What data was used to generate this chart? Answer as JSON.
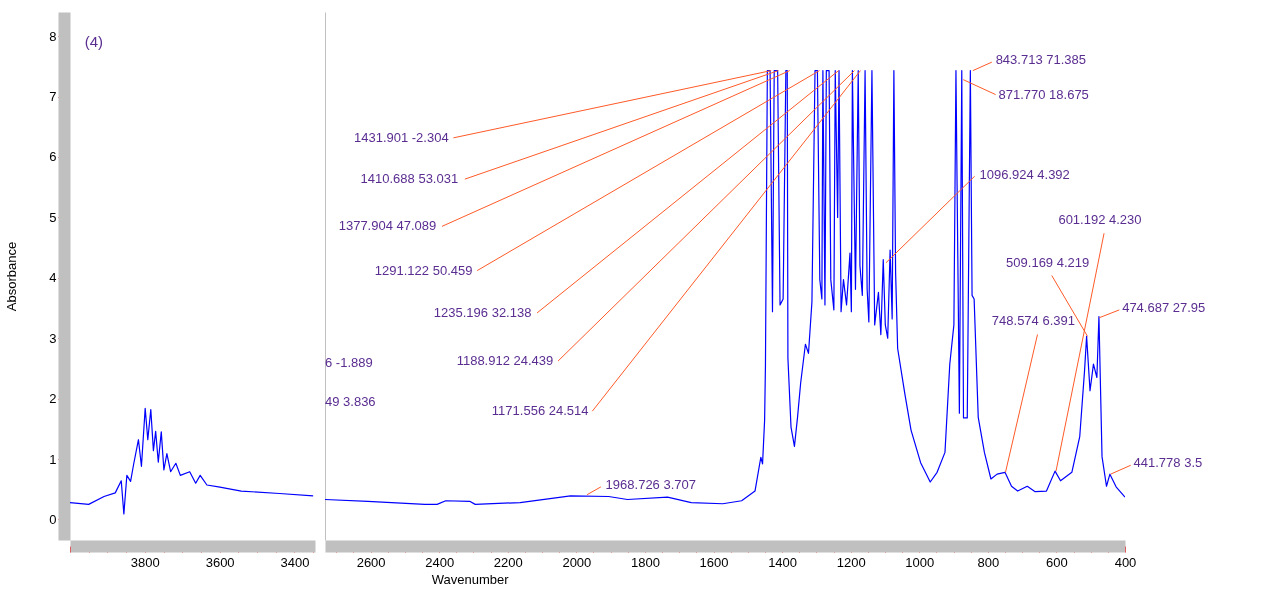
{
  "chart_data": [
    {
      "type": "line",
      "ylabel": "Absorbance",
      "x": [
        4000,
        3950,
        3909,
        3879,
        3863,
        3856,
        3848,
        3838,
        3830,
        3817,
        3809,
        3799,
        3792,
        3784,
        3777,
        3771,
        3764,
        3756,
        3749,
        3741,
        3731,
        3717,
        3705,
        3680,
        3664,
        3652,
        3634,
        3603,
        3542,
        3440,
        3350
      ],
      "series": [
        {
          "color": "#0000ff",
          "values": [
            0.28,
            0.25,
            0.38,
            0.44,
            0.64,
            0.09,
            0.73,
            0.63,
            0.91,
            1.32,
            0.88,
            1.84,
            1.32,
            1.82,
            1.14,
            1.46,
            0.95,
            1.45,
            0.82,
            1.09,
            0.79,
            0.93,
            0.73,
            0.79,
            0.6,
            0.73,
            0.57,
            0.54,
            0.47,
            0.43,
            0.39
          ]
        }
      ],
      "xlim": [
        4000,
        3345
      ],
      "ylim": [
        -0.34,
        8.4
      ],
      "xticks": [
        {
          "value": 4000,
          "label": null
        },
        {
          "value": 3950,
          "label": null
        },
        {
          "value": 3900,
          "label": null
        },
        {
          "value": 3850,
          "label": null
        },
        3800,
        {
          "value": 3750,
          "label": null
        },
        {
          "value": 3700,
          "label": null
        },
        {
          "value": 3650,
          "label": null
        },
        3600,
        {
          "value": 3550,
          "label": null
        },
        {
          "value": 3500,
          "label": null
        },
        {
          "value": 3450,
          "label": null
        },
        3400,
        {
          "value": 3350,
          "label": null
        }
      ],
      "yticks": [
        0,
        1,
        2,
        3,
        4,
        5,
        6,
        7,
        8
      ],
      "annotations": [
        "(4)"
      ]
    },
    {
      "type": "line",
      "xlabel": "Wavenumber",
      "x": [
        2733,
        2608,
        2442,
        2406,
        2381,
        2311,
        2295,
        2164,
        2017,
        1906,
        1851,
        1734,
        1665,
        1573,
        1518,
        1479,
        1462,
        1457,
        1451,
        1448.5,
        1443,
        1435,
        1428,
        1423,
        1413,
        1406,
        1397,
        1389,
        1385,
        1383,
        1374,
        1364,
        1355,
        1346,
        1332,
        1323,
        1313,
        1304,
        1297,
        1290,
        1284,
        1281,
        1275,
        1271,
        1263,
        1258,
        1249,
        1245,
        1238,
        1234,
        1228,
        1221,
        1212,
        1202,
        1198,
        1195,
        1186,
        1178,
        1173,
        1166,
        1158,
        1152,
        1147,
        1138,
        1130,
        1119,
        1112,
        1105,
        1099,
        1092,
        1085,
        1079,
        1074,
        1069,
        1063,
        1042,
        1024,
        996,
        968,
        948,
        925,
        911,
        899,
        893,
        883,
        876,
        871,
        860,
        851,
        846,
        840,
        828,
        810,
        791,
        773,
        750,
        731,
        713,
        685,
        662,
        629,
        604,
        588,
        555,
        532,
        518,
        512,
        502,
        492,
        482,
        476,
        467,
        454,
        444,
        426,
        400
      ],
      "series": [
        {
          "color": "#0000ff",
          "values": [
            0.33,
            0.3,
            0.25,
            0.25,
            0.31,
            0.3,
            0.25,
            0.28,
            0.39,
            0.38,
            0.33,
            0.37,
            0.28,
            0.26,
            0.31,
            0.47,
            1.03,
            0.92,
            1.64,
            2.57,
            7.43,
            7.43,
            3.44,
            7.43,
            7.43,
            3.55,
            3.65,
            7.43,
            7.43,
            2.67,
            1.53,
            1.21,
            1.69,
            2.25,
            2.9,
            2.75,
            3.6,
            7.43,
            7.43,
            3.97,
            3.65,
            7.43,
            3.55,
            7.43,
            7.43,
            3.97,
            3.47,
            7.43,
            5.0,
            7.43,
            3.44,
            3.97,
            3.55,
            4.41,
            3.44,
            7.43,
            3.81,
            7.43,
            4.2,
            3.71,
            7.43,
            3.81,
            3.27,
            7.43,
            3.22,
            3.76,
            3.06,
            4.3,
            3.22,
            3.0,
            4.46,
            3.32,
            7.43,
            4.09,
            2.83,
            2.08,
            1.48,
            0.94,
            0.62,
            0.78,
            1.11,
            2.57,
            3.22,
            7.43,
            1.76,
            7.43,
            1.68,
            1.68,
            7.43,
            3.71,
            3.65,
            1.69,
            1.11,
            0.67,
            0.75,
            0.78,
            0.55,
            0.47,
            0.55,
            0.46,
            0.47,
            0.8,
            0.64,
            0.78,
            1.37,
            2.46,
            3.03,
            2.13,
            2.57,
            2.35,
            3.36,
            1.04,
            0.55,
            0.75,
            0.54,
            0.37
          ]
        }
      ],
      "xlim": [
        2733,
        400
      ],
      "ylim": [
        -0.34,
        8.4
      ],
      "xticks": [
        {
          "value": 2700,
          "label": null
        },
        {
          "value": 2650,
          "label": null
        },
        2600,
        {
          "value": 2550,
          "label": null
        },
        {
          "value": 2500,
          "label": null
        },
        {
          "value": 2450,
          "label": null
        },
        2400,
        {
          "value": 2350,
          "label": null
        },
        {
          "value": 2300,
          "label": null
        },
        {
          "value": 2250,
          "label": null
        },
        2200,
        {
          "value": 2150,
          "label": null
        },
        {
          "value": 2100,
          "label": null
        },
        {
          "value": 2050,
          "label": null
        },
        2000,
        {
          "value": 1950,
          "label": null
        },
        {
          "value": 1900,
          "label": null
        },
        {
          "value": 1850,
          "label": null
        },
        1800,
        {
          "value": 1750,
          "label": null
        },
        {
          "value": 1700,
          "label": null
        },
        {
          "value": 1650,
          "label": null
        },
        1600,
        {
          "value": 1550,
          "label": null
        },
        {
          "value": 1500,
          "label": null
        },
        {
          "value": 1450,
          "label": null
        },
        1400,
        {
          "value": 1350,
          "label": null
        },
        {
          "value": 1300,
          "label": null
        },
        {
          "value": 1250,
          "label": null
        },
        1200,
        {
          "value": 1150,
          "label": null
        },
        {
          "value": 1100,
          "label": null
        },
        {
          "value": 1050,
          "label": null
        },
        1000,
        {
          "value": 950,
          "label": null
        },
        {
          "value": 900,
          "label": null
        },
        {
          "value": 850,
          "label": null
        },
        800,
        {
          "value": 750,
          "label": null
        },
        {
          "value": 700,
          "label": null
        },
        {
          "value": 650,
          "label": null
        },
        600,
        {
          "value": 550,
          "label": null
        },
        {
          "value": 500,
          "label": null
        },
        {
          "value": 450,
          "label": null
        },
        400
      ],
      "tick_labels": "x",
      "annotations": [
        {
          "text": "1431.901  -2.304",
          "x": 1431.901,
          "y": 7.43
        },
        {
          "text": "1410.688  53.031",
          "x": 1410.688,
          "y": 7.43
        },
        {
          "text": "1377.904  47.089",
          "x": 1377.904,
          "y": 7.43
        },
        {
          "text": "1291.122  50.459",
          "x": 1291.122,
          "y": 7.43
        },
        {
          "text": "1235.196  32.138",
          "x": 1235.196,
          "y": 7.43
        },
        {
          "text": "1188.912  24.439",
          "x": 1188.912,
          "y": 7.43
        },
        {
          "text": "1171.556  24.514",
          "x": 1171.556,
          "y": 7.43
        },
        {
          "text": "1968.726  3.707",
          "x": 1968.726,
          "y": 0.41
        },
        {
          "text": "843.713  71.385",
          "x": 843.713,
          "y": 7.43
        },
        {
          "text": "871.770  18.675",
          "x": 871.77,
          "y": 7.28
        },
        {
          "text": "1096.924  4.392",
          "x": 1096.924,
          "y": 4.25
        },
        {
          "text": "601.192  4.230",
          "x": 601.192,
          "y": 0.8
        },
        {
          "text": "509.169  4.219",
          "x": 509.169,
          "y": 3.03
        },
        {
          "text": "748.574  6.391",
          "x": 748.574,
          "y": 0.78
        },
        {
          "text": "474.687  27.95",
          "x": 474.687,
          "y": 3.34
        },
        {
          "text": "441.778  3.5",
          "x": 441.778,
          "y": 0.75
        },
        "6  -1.889",
        "49  3.836"
      ]
    }
  ]
}
